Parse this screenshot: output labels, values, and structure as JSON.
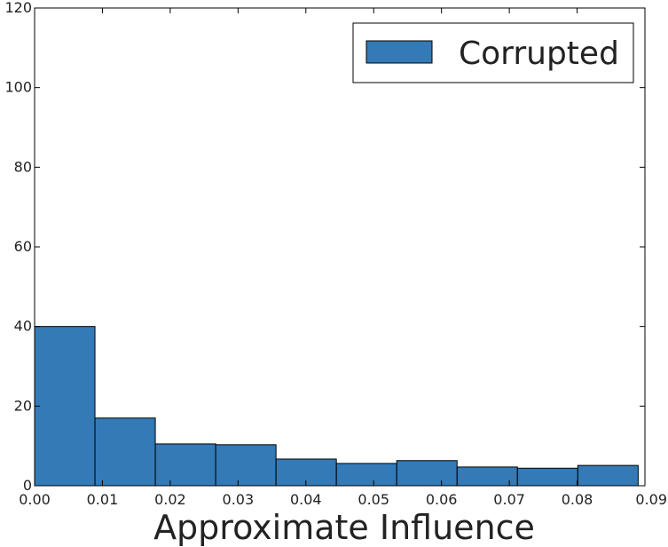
{
  "chart_data": {
    "type": "bar",
    "xlabel": "Approximate Influence",
    "ylabel": "",
    "xlim": [
      0.0,
      0.09
    ],
    "ylim": [
      0,
      120
    ],
    "xticks": [
      "0.00",
      "0.01",
      "0.02",
      "0.03",
      "0.04",
      "0.05",
      "0.06",
      "0.07",
      "0.08",
      "0.09"
    ],
    "yticks": [
      "0",
      "20",
      "40",
      "60",
      "80",
      "100",
      "120"
    ],
    "bin_edges": [
      0.0,
      0.0089,
      0.0178,
      0.0267,
      0.0356,
      0.0445,
      0.0534,
      0.0623,
      0.0712,
      0.0801,
      0.089
    ],
    "series": [
      {
        "name": "Corrupted",
        "color": "#337ab7",
        "values": [
          40,
          17,
          10.5,
          10.3,
          6.7,
          5.6,
          6.3,
          4.7,
          4.4,
          5.1
        ]
      }
    ],
    "legend": {
      "position": "top-right",
      "entries": [
        "Corrupted"
      ]
    },
    "grid": false
  }
}
